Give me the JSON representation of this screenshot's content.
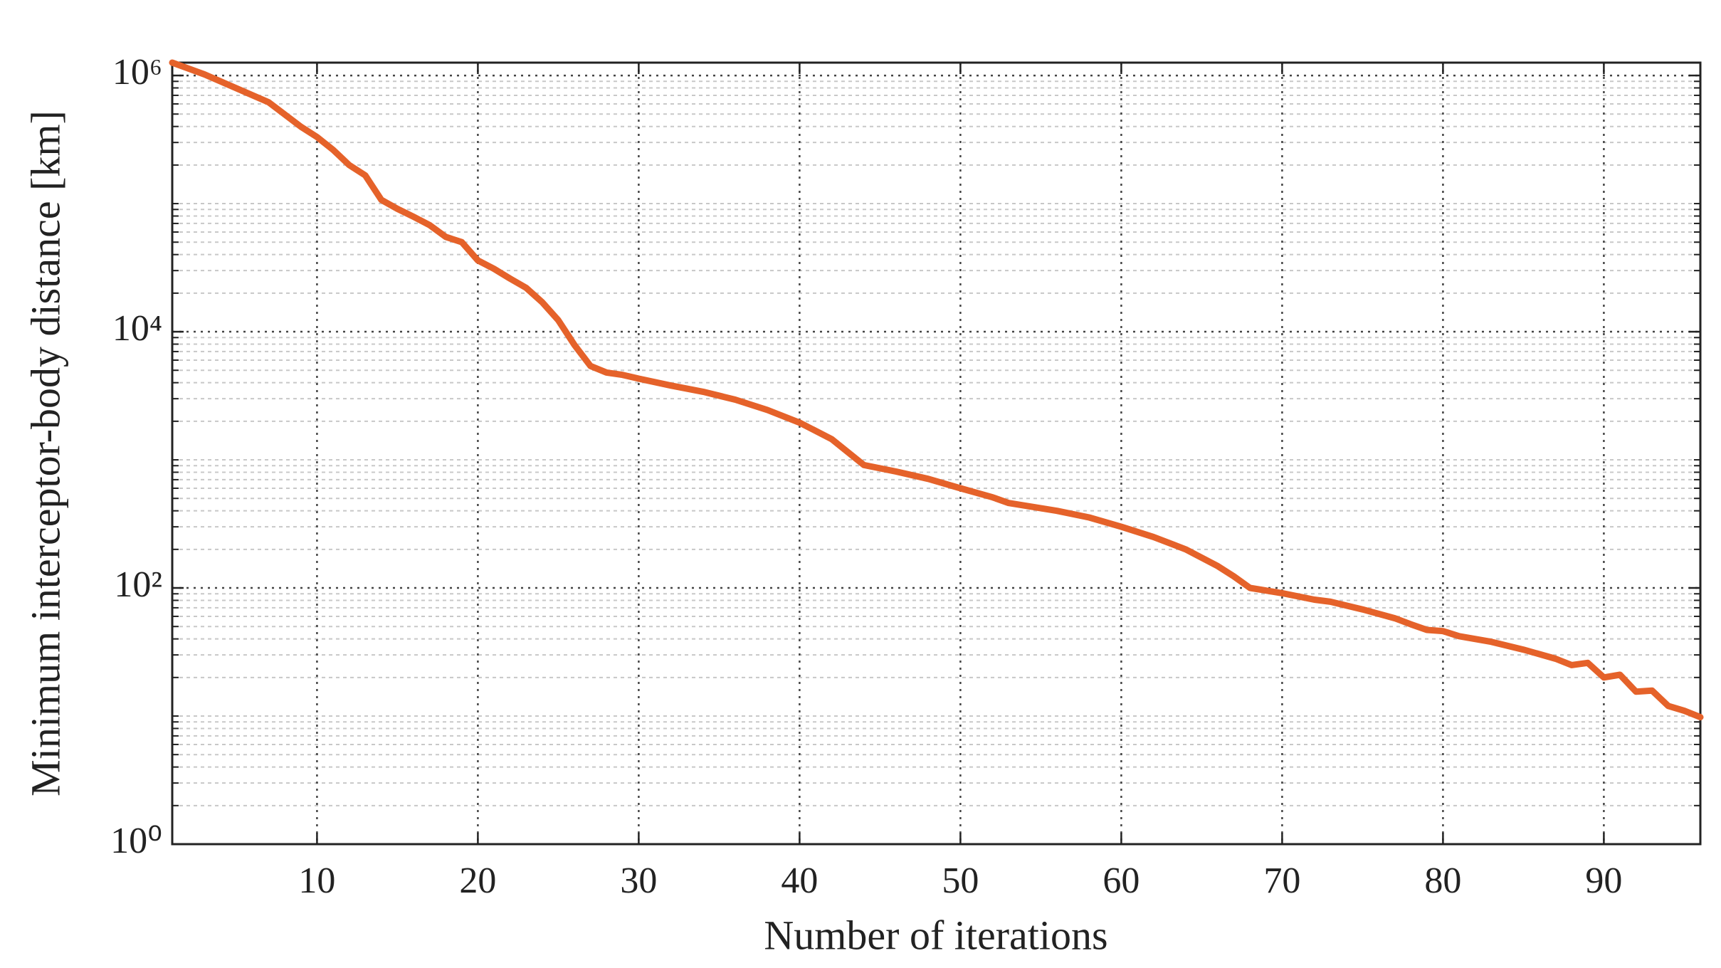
{
  "chart_data": {
    "type": "line",
    "xlabel": "Number of iterations",
    "ylabel": "Minimum interceptor-body distance [km]",
    "color": "#e5622a",
    "log_y": true,
    "grid": true,
    "minor_grid": true,
    "xlim": [
      1,
      96
    ],
    "xticks": [
      10,
      20,
      30,
      40,
      50,
      60,
      70,
      80,
      90
    ],
    "ylim": [
      1,
      1260000
    ],
    "yticks": [
      {
        "value": 1,
        "label": "10⁰"
      },
      {
        "value": 100,
        "label": "10²"
      },
      {
        "value": 10000,
        "label": "10⁴"
      },
      {
        "value": 1000000,
        "label": "10⁶"
      }
    ],
    "yminorticks": [
      2,
      3,
      4,
      5,
      6,
      7,
      8,
      9,
      10,
      20,
      30,
      40,
      50,
      60,
      70,
      80,
      90,
      200,
      300,
      400,
      500,
      600,
      700,
      800,
      900,
      1000,
      2000,
      3000,
      4000,
      5000,
      6000,
      7000,
      8000,
      9000,
      20000,
      30000,
      40000,
      50000,
      60000,
      70000,
      80000,
      90000,
      100000,
      200000,
      300000,
      400000,
      500000,
      600000,
      700000,
      800000,
      900000
    ],
    "x": [
      1,
      3,
      5,
      7,
      9,
      10,
      11,
      12,
      13,
      14,
      15,
      16,
      17,
      18,
      19,
      20,
      21,
      22,
      23,
      24,
      25,
      26,
      27,
      28,
      29,
      30,
      32,
      34,
      36,
      38,
      40,
      42,
      44,
      46,
      48,
      50,
      52,
      53,
      56,
      58,
      60,
      62,
      64,
      66,
      67,
      68,
      70,
      72,
      73,
      75,
      77,
      78,
      79,
      80,
      81,
      83,
      85,
      87,
      88,
      89,
      90,
      91,
      92,
      93,
      94,
      95,
      96
    ],
    "values": [
      1260000,
      1020000,
      794000,
      617000,
      398000,
      331000,
      263000,
      200000,
      166000,
      107000,
      91000,
      79000,
      68000,
      55000,
      50000,
      36000,
      31000,
      26000,
      22000,
      17000,
      12300,
      7900,
      5400,
      4800,
      4600,
      4300,
      3800,
      3400,
      2950,
      2450,
      1950,
      1450,
      910,
      810,
      710,
      600,
      510,
      460,
      400,
      355,
      300,
      250,
      200,
      148,
      123,
      100,
      91,
      81,
      78,
      68,
      58,
      52,
      47,
      46,
      42,
      38,
      33,
      28,
      25,
      26,
      20,
      21,
      15.5,
      15.8,
      12,
      11,
      9.8
    ]
  }
}
